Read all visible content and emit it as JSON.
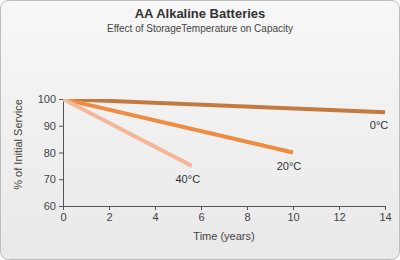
{
  "chart_data": {
    "type": "line",
    "title": "AA Alkaline Batteries",
    "subtitle": "Effect of StorageTemperature on Capacity",
    "x_label": "Time (years)",
    "y_label": "% of Initial Service",
    "xlim": [
      0,
      14
    ],
    "xticks": [
      0,
      2,
      4,
      6,
      8,
      10,
      12,
      14
    ],
    "ylim": [
      60,
      100
    ],
    "yticks": [
      60,
      70,
      80,
      90,
      100
    ],
    "grid": false,
    "series": [
      {
        "name": "0°C",
        "color": "#c47a3f",
        "x": [
          0,
          14
        ],
        "values": [
          100,
          95
        ]
      },
      {
        "name": "20°C",
        "color": "#f08c42",
        "x": [
          0,
          10
        ],
        "values": [
          100,
          80
        ]
      },
      {
        "name": "40°C",
        "color": "#f4b79a",
        "x": [
          0,
          5.6
        ],
        "values": [
          100,
          75
        ]
      }
    ]
  }
}
